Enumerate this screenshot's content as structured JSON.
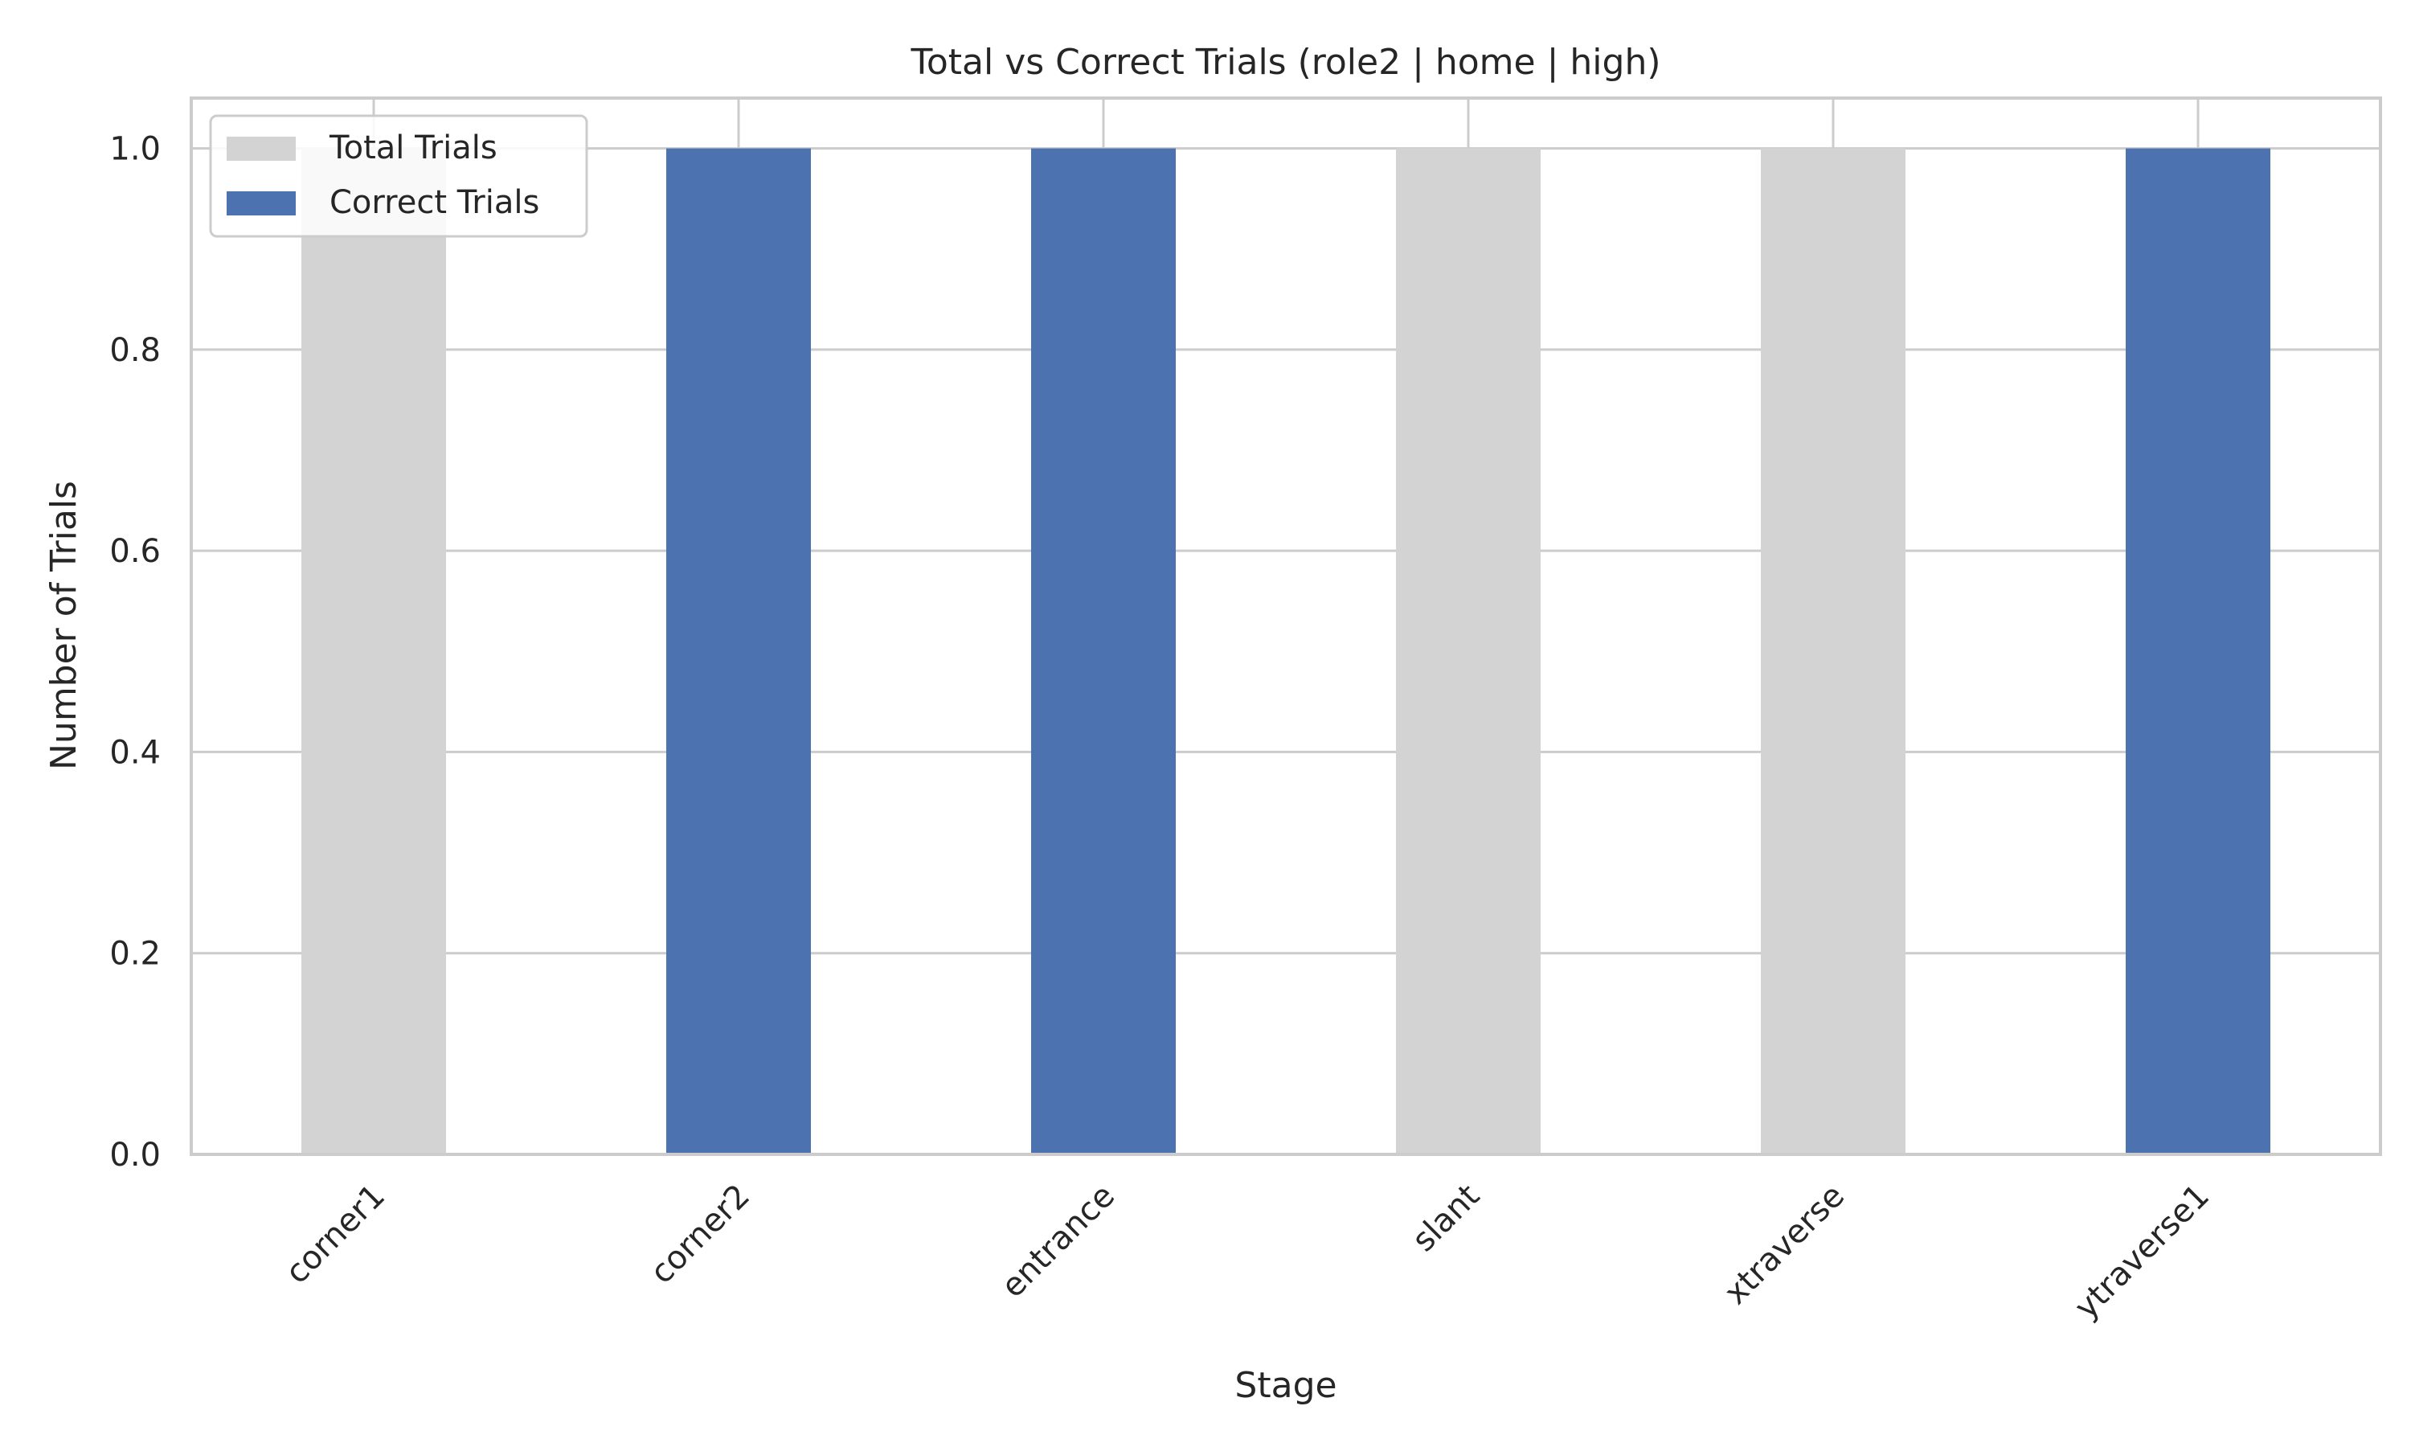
{
  "chart_data": {
    "type": "bar",
    "title": "Total vs Correct Trials (role2 | home | high)",
    "xlabel": "Stage",
    "ylabel": "Number of Trials",
    "categories": [
      "corner1",
      "corner2",
      "entrance",
      "slant",
      "xtraverse",
      "ytraverse1"
    ],
    "series": [
      {
        "name": "Total Trials",
        "values": [
          1,
          1,
          1,
          1,
          1,
          1
        ],
        "color": "#d3d3d3"
      },
      {
        "name": "Correct Trials",
        "values": [
          0,
          1,
          1,
          0,
          0,
          1
        ],
        "color": "#4c72b0"
      }
    ],
    "ylim": [
      0,
      1.05
    ],
    "yticks": [
      "0.0",
      "0.2",
      "0.4",
      "0.6",
      "0.8",
      "1.0"
    ],
    "grid": true,
    "legend_position": "top-left"
  }
}
